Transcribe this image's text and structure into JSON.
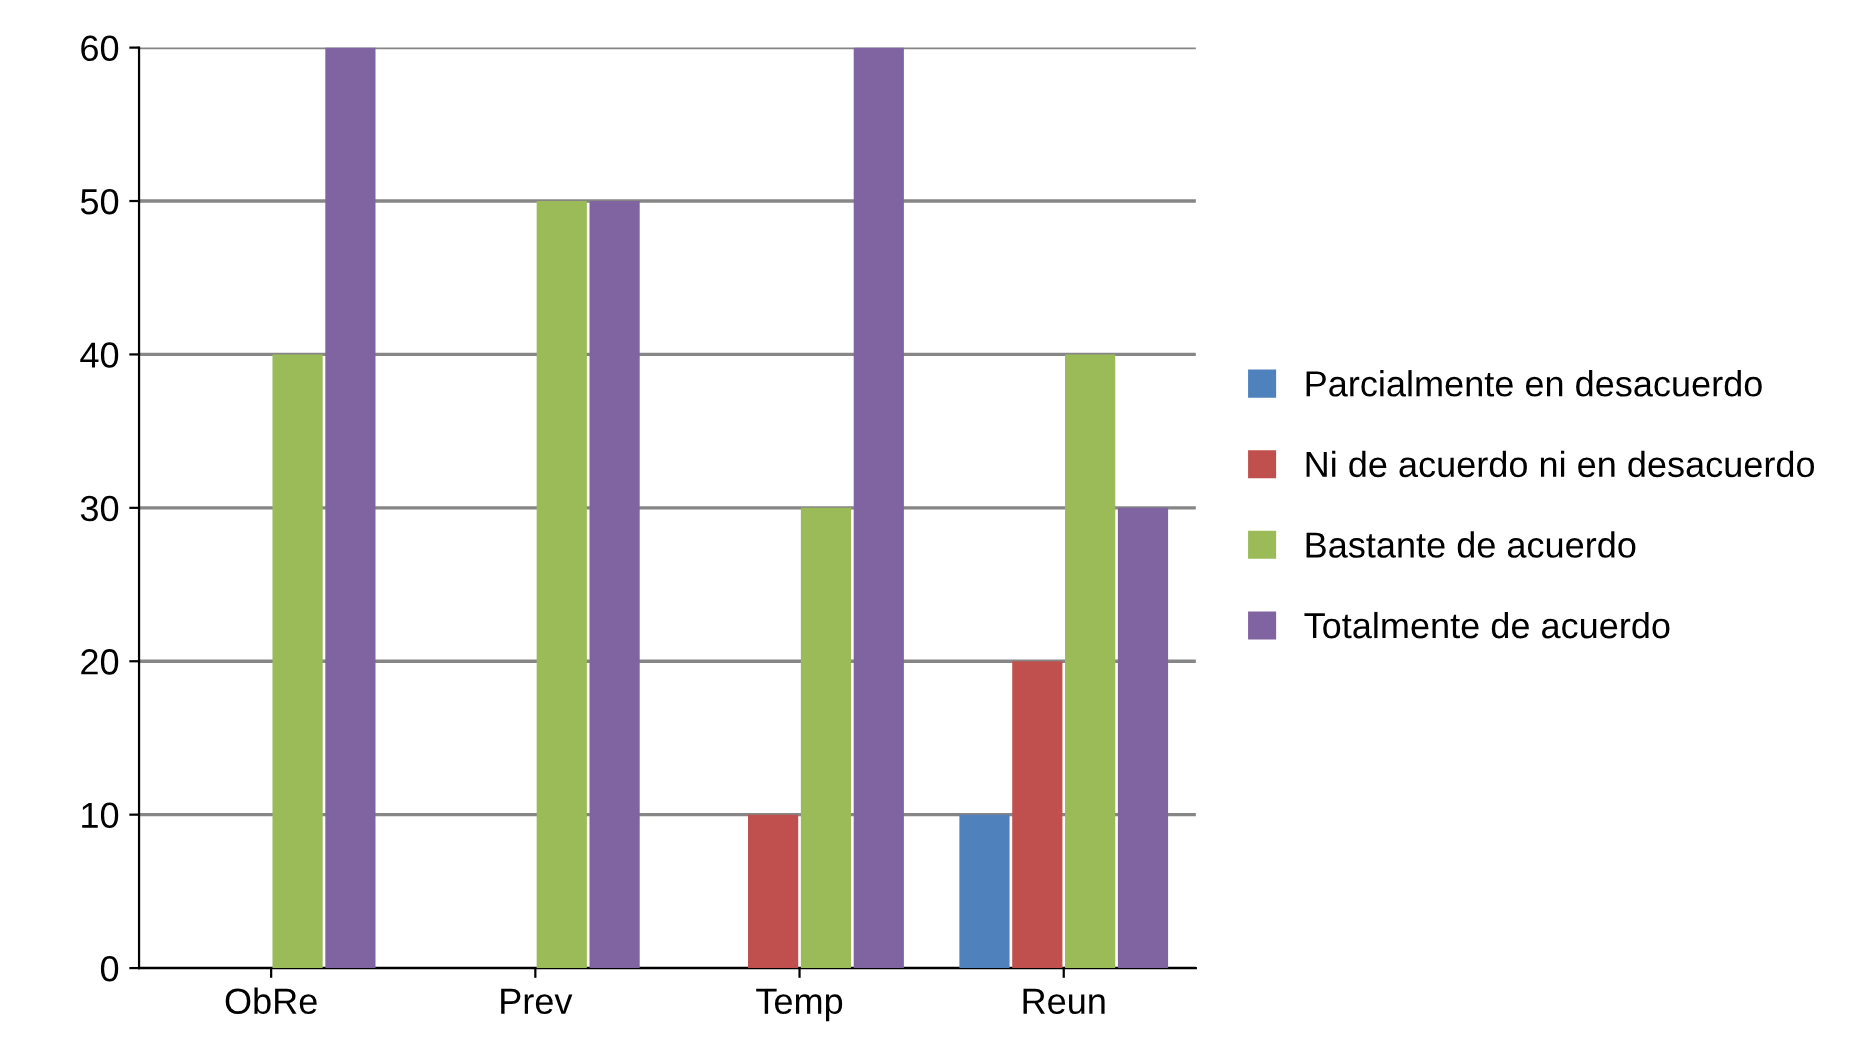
{
  "chart_data": {
    "type": "bar",
    "categories": [
      "ObRe",
      "Prev",
      "Temp",
      "Reun"
    ],
    "series": [
      {
        "name": "Parcialmente en desacuerdo",
        "color": "#4f81bd",
        "values": [
          null,
          null,
          null,
          10
        ]
      },
      {
        "name": "Ni de acuerdo ni en desacuerdo",
        "color": "#c0504d",
        "values": [
          null,
          null,
          10,
          20
        ]
      },
      {
        "name": "Bastante de acuerdo",
        "color": "#9bbb59",
        "values": [
          40,
          50,
          30,
          40
        ]
      },
      {
        "name": "Totalmente de acuerdo",
        "color": "#8064a2",
        "values": [
          60,
          50,
          60,
          30
        ]
      }
    ],
    "ylim": [
      0,
      60
    ],
    "yticks": [
      0,
      10,
      20,
      30,
      40,
      50,
      60
    ],
    "grid": "y",
    "legend": "right"
  }
}
